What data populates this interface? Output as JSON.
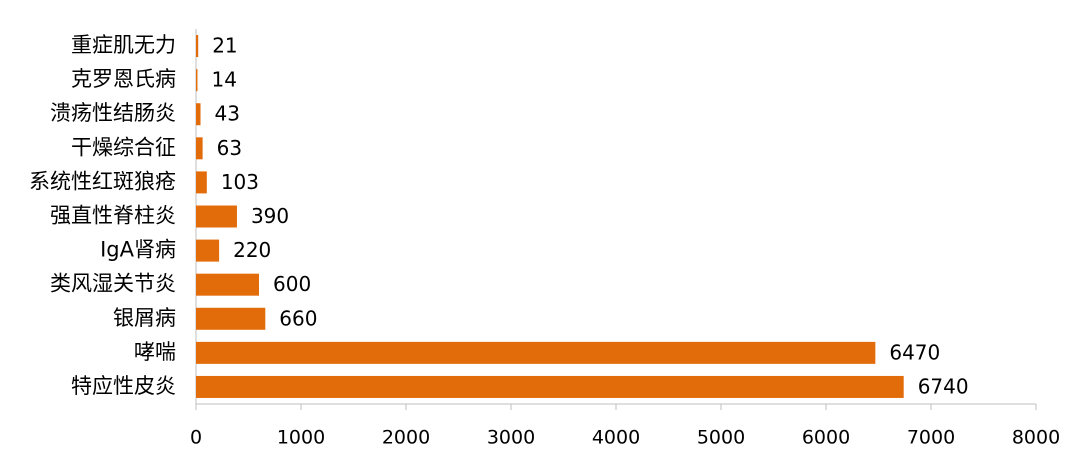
{
  "chart_data": {
    "type": "hbar",
    "categories": [
      "重症肌无力",
      "克罗恩氏病",
      "溃疡性结肠炎",
      "干燥综合征",
      "系统性红斑狼疮",
      "强直性脊柱炎",
      "IgA肾病",
      "类风湿关节炎",
      "银屑病",
      "哮喘",
      "特应性皮炎"
    ],
    "values": [
      21,
      14,
      43,
      63,
      103,
      390,
      220,
      600,
      660,
      6470,
      6740
    ],
    "color": "#e36c0a",
    "xlim": [
      0,
      8000
    ],
    "xticks": [
      0,
      1000,
      2000,
      3000,
      4000,
      5000,
      6000,
      7000,
      8000
    ]
  }
}
